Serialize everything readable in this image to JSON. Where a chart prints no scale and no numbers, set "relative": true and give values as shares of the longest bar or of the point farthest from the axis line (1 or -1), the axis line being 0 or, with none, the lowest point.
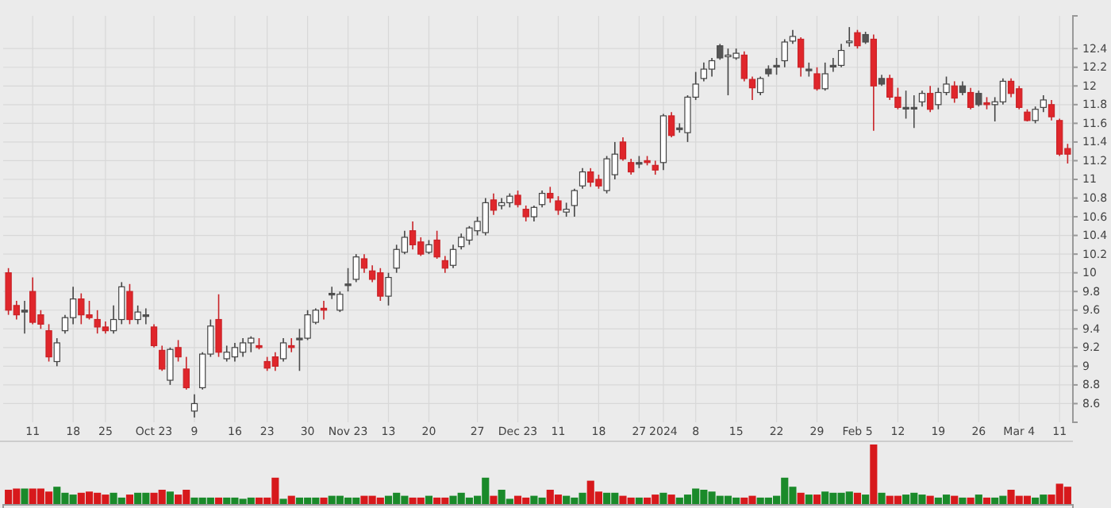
{
  "chart_data": [
    {
      "type": "candlestick",
      "grid": true,
      "categories": [
        null,
        null,
        null,
        "11",
        null,
        null,
        null,
        null,
        "18",
        null,
        null,
        null,
        "25",
        null,
        null,
        null,
        null,
        null,
        "Oct 23",
        null,
        null,
        null,
        null,
        "9",
        null,
        null,
        null,
        null,
        "16",
        null,
        null,
        null,
        "23",
        null,
        null,
        null,
        null,
        "30",
        null,
        null,
        null,
        null,
        "Nov 23",
        null,
        null,
        null,
        null,
        "13",
        null,
        null,
        null,
        null,
        "20",
        null,
        null,
        null,
        null,
        null,
        "27",
        null,
        null,
        null,
        null,
        "Dec 23",
        null,
        null,
        null,
        null,
        "11",
        null,
        null,
        null,
        null,
        "18",
        null,
        null,
        null,
        null,
        "27",
        null,
        null,
        "2024",
        null,
        null,
        null,
        "8",
        null,
        null,
        null,
        null,
        "15",
        null,
        null,
        null,
        null,
        "22",
        null,
        null,
        null,
        null,
        "29",
        null,
        null,
        null,
        null,
        "Feb 5",
        null,
        null,
        null,
        null,
        "12",
        null,
        null,
        null,
        null,
        "19",
        null,
        null,
        null,
        null,
        "26",
        null,
        null,
        null,
        null,
        "Mar 4",
        null,
        null,
        null,
        null,
        "11",
        null
      ],
      "ylim": [
        8.4,
        12.75
      ],
      "yticks": [
        8.6,
        8.8,
        9,
        9.2,
        9.4,
        9.6,
        9.8,
        10,
        10.2,
        10.4,
        10.6,
        10.8,
        11,
        11.2,
        11.4,
        11.6,
        11.8,
        12,
        12.2,
        12.4
      ],
      "ohlc": [
        [
          10.0,
          10.05,
          9.55,
          9.6
        ],
        [
          9.65,
          9.7,
          9.5,
          9.55
        ],
        [
          9.6,
          9.7,
          9.35,
          9.58
        ],
        [
          9.8,
          9.95,
          9.45,
          9.47
        ],
        [
          9.55,
          9.6,
          9.4,
          9.45
        ],
        [
          9.38,
          9.45,
          9.05,
          9.1
        ],
        [
          9.05,
          9.3,
          9.0,
          9.25
        ],
        [
          9.38,
          9.55,
          9.35,
          9.52
        ],
        [
          9.52,
          9.85,
          9.45,
          9.72
        ],
        [
          9.72,
          9.78,
          9.45,
          9.55
        ],
        [
          9.55,
          9.7,
          9.5,
          9.52
        ],
        [
          9.5,
          9.6,
          9.35,
          9.42
        ],
        [
          9.42,
          9.48,
          9.35,
          9.38
        ],
        [
          9.38,
          9.65,
          9.35,
          9.5
        ],
        [
          9.5,
          9.9,
          9.45,
          9.85
        ],
        [
          9.8,
          9.88,
          9.45,
          9.5
        ],
        [
          9.5,
          9.65,
          9.45,
          9.58
        ],
        [
          9.55,
          9.62,
          9.45,
          9.55
        ],
        [
          9.42,
          9.45,
          9.2,
          9.22
        ],
        [
          9.17,
          9.22,
          8.95,
          8.97
        ],
        [
          8.85,
          9.2,
          8.8,
          9.18
        ],
        [
          9.2,
          9.28,
          9.05,
          9.1
        ],
        [
          8.97,
          9.1,
          8.75,
          8.77
        ],
        [
          8.52,
          8.7,
          8.45,
          8.6
        ],
        [
          8.77,
          9.15,
          8.75,
          9.13
        ],
        [
          9.13,
          9.5,
          9.1,
          9.43
        ],
        [
          9.5,
          9.77,
          9.1,
          9.15
        ],
        [
          9.08,
          9.22,
          9.05,
          9.15
        ],
        [
          9.1,
          9.25,
          9.05,
          9.2
        ],
        [
          9.15,
          9.3,
          9.1,
          9.25
        ],
        [
          9.25,
          9.32,
          9.15,
          9.3
        ],
        [
          9.22,
          9.3,
          9.18,
          9.2
        ],
        [
          9.05,
          9.1,
          8.95,
          8.98
        ],
        [
          9.1,
          9.15,
          8.95,
          9.0
        ],
        [
          9.08,
          9.3,
          9.05,
          9.25
        ],
        [
          9.22,
          9.3,
          9.15,
          9.2
        ],
        [
          9.3,
          9.4,
          8.95,
          9.3
        ],
        [
          9.3,
          9.6,
          9.28,
          9.55
        ],
        [
          9.47,
          9.62,
          9.45,
          9.6
        ],
        [
          9.62,
          9.7,
          9.5,
          9.6
        ],
        [
          9.78,
          9.85,
          9.72,
          9.78
        ],
        [
          9.6,
          9.8,
          9.58,
          9.77
        ],
        [
          9.88,
          10.05,
          9.8,
          9.88
        ],
        [
          9.93,
          10.2,
          9.9,
          10.17
        ],
        [
          10.15,
          10.2,
          10.0,
          10.05
        ],
        [
          10.02,
          10.08,
          9.9,
          9.93
        ],
        [
          10.0,
          10.05,
          9.7,
          9.75
        ],
        [
          9.75,
          10.0,
          9.65,
          9.95
        ],
        [
          10.05,
          10.3,
          10.0,
          10.25
        ],
        [
          10.22,
          10.45,
          10.2,
          10.38
        ],
        [
          10.45,
          10.55,
          10.25,
          10.3
        ],
        [
          10.33,
          10.38,
          10.18,
          10.2
        ],
        [
          10.22,
          10.35,
          10.2,
          10.3
        ],
        [
          10.35,
          10.45,
          10.15,
          10.17
        ],
        [
          10.13,
          10.18,
          10.0,
          10.05
        ],
        [
          10.08,
          10.3,
          10.05,
          10.25
        ],
        [
          10.28,
          10.42,
          10.25,
          10.38
        ],
        [
          10.35,
          10.5,
          10.3,
          10.48
        ],
        [
          10.45,
          10.6,
          10.4,
          10.55
        ],
        [
          10.43,
          10.8,
          10.4,
          10.75
        ],
        [
          10.78,
          10.85,
          10.62,
          10.67
        ],
        [
          10.72,
          10.8,
          10.68,
          10.75
        ],
        [
          10.75,
          10.85,
          10.7,
          10.82
        ],
        [
          10.83,
          10.88,
          10.7,
          10.73
        ],
        [
          10.68,
          10.72,
          10.55,
          10.6
        ],
        [
          10.6,
          10.72,
          10.55,
          10.7
        ],
        [
          10.73,
          10.88,
          10.7,
          10.85
        ],
        [
          10.85,
          10.92,
          10.75,
          10.8
        ],
        [
          10.77,
          10.82,
          10.62,
          10.67
        ],
        [
          10.65,
          10.75,
          10.6,
          10.68
        ],
        [
          10.72,
          10.9,
          10.6,
          10.88
        ],
        [
          10.93,
          11.12,
          10.9,
          11.08
        ],
        [
          11.08,
          11.12,
          10.92,
          10.97
        ],
        [
          11.0,
          11.05,
          10.9,
          10.93
        ],
        [
          10.88,
          11.25,
          10.85,
          11.22
        ],
        [
          11.05,
          11.4,
          11.0,
          11.27
        ],
        [
          11.4,
          11.45,
          11.2,
          11.22
        ],
        [
          11.18,
          11.22,
          11.05,
          11.08
        ],
        [
          11.18,
          11.25,
          11.12,
          11.18
        ],
        [
          11.2,
          11.25,
          11.15,
          11.18
        ],
        [
          11.15,
          11.2,
          11.05,
          11.1
        ],
        [
          11.18,
          11.7,
          11.1,
          11.68
        ],
        [
          11.68,
          11.72,
          11.45,
          11.47
        ],
        [
          11.55,
          11.6,
          11.5,
          11.55
        ],
        [
          11.5,
          11.9,
          11.4,
          11.88
        ],
        [
          11.88,
          12.15,
          11.85,
          12.02
        ],
        [
          12.08,
          12.25,
          12.05,
          12.18
        ],
        [
          12.18,
          12.3,
          12.1,
          12.27
        ],
        [
          12.43,
          12.45,
          12.28,
          12.3
        ],
        [
          12.32,
          12.4,
          11.9,
          12.33
        ],
        [
          12.3,
          12.4,
          12.28,
          12.35
        ],
        [
          12.33,
          12.37,
          12.05,
          12.08
        ],
        [
          12.07,
          12.1,
          11.85,
          11.98
        ],
        [
          11.93,
          12.1,
          11.9,
          12.08
        ],
        [
          12.18,
          12.22,
          12.1,
          12.13
        ],
        [
          12.22,
          12.3,
          12.12,
          12.22
        ],
        [
          12.27,
          12.5,
          12.2,
          12.47
        ],
        [
          12.48,
          12.6,
          12.45,
          12.53
        ],
        [
          12.5,
          12.52,
          12.1,
          12.2
        ],
        [
          12.18,
          12.25,
          12.1,
          12.18
        ],
        [
          12.13,
          12.2,
          11.95,
          11.97
        ],
        [
          11.97,
          12.25,
          11.95,
          12.13
        ],
        [
          12.22,
          12.3,
          12.15,
          12.22
        ],
        [
          12.22,
          12.45,
          12.2,
          12.38
        ],
        [
          12.47,
          12.63,
          12.42,
          12.48
        ],
        [
          12.57,
          12.6,
          12.4,
          12.43
        ],
        [
          12.55,
          12.58,
          12.45,
          12.47
        ],
        [
          12.5,
          12.55,
          11.52,
          12.0
        ],
        [
          12.08,
          12.12,
          12.0,
          12.02
        ],
        [
          12.08,
          12.12,
          11.85,
          11.88
        ],
        [
          11.88,
          11.98,
          11.75,
          11.77
        ],
        [
          11.77,
          11.95,
          11.65,
          11.77
        ],
        [
          11.77,
          11.9,
          11.55,
          11.77
        ],
        [
          11.83,
          11.95,
          11.78,
          11.92
        ],
        [
          11.92,
          12.0,
          11.72,
          11.75
        ],
        [
          11.8,
          11.98,
          11.75,
          11.93
        ],
        [
          11.93,
          12.1,
          11.9,
          12.02
        ],
        [
          12.0,
          12.05,
          11.82,
          11.87
        ],
        [
          12.0,
          12.05,
          11.9,
          11.93
        ],
        [
          11.93,
          11.98,
          11.75,
          11.77
        ],
        [
          11.92,
          11.95,
          11.78,
          11.8
        ],
        [
          11.82,
          11.88,
          11.75,
          11.8
        ],
        [
          11.8,
          11.88,
          11.62,
          11.83
        ],
        [
          11.83,
          12.08,
          11.8,
          12.05
        ],
        [
          12.05,
          12.08,
          11.88,
          11.92
        ],
        [
          11.97,
          12.0,
          11.75,
          11.77
        ],
        [
          11.72,
          11.75,
          11.62,
          11.63
        ],
        [
          11.63,
          11.78,
          11.6,
          11.75
        ],
        [
          11.77,
          11.9,
          11.72,
          11.85
        ],
        [
          11.8,
          11.85,
          11.63,
          11.67
        ],
        [
          11.63,
          11.65,
          11.25,
          11.27
        ],
        [
          11.33,
          11.38,
          11.17,
          11.27
        ]
      ],
      "colors": [
        "#e0262b",
        "#e0262b",
        "#555555",
        "#e0262b",
        "#e0262b",
        "#e0262b",
        "#ffffff",
        "#ffffff",
        "#ffffff",
        "#e0262b",
        "#e0262b",
        "#e0262b",
        "#e0262b",
        "#ffffff",
        "#ffffff",
        "#e0262b",
        "#ffffff",
        "#555555",
        "#e0262b",
        "#e0262b",
        "#ffffff",
        "#e0262b",
        "#e0262b",
        "#ffffff",
        "#ffffff",
        "#ffffff",
        "#e0262b",
        "#ffffff",
        "#ffffff",
        "#ffffff",
        "#ffffff",
        "#e0262b",
        "#e0262b",
        "#e0262b",
        "#ffffff",
        "#e0262b",
        "#555555",
        "#ffffff",
        "#ffffff",
        "#e0262b",
        "#555555",
        "#ffffff",
        "#555555",
        "#ffffff",
        "#e0262b",
        "#e0262b",
        "#e0262b",
        "#ffffff",
        "#ffffff",
        "#ffffff",
        "#e0262b",
        "#e0262b",
        "#ffffff",
        "#e0262b",
        "#e0262b",
        "#ffffff",
        "#ffffff",
        "#ffffff",
        "#ffffff",
        "#ffffff",
        "#e0262b",
        "#ffffff",
        "#ffffff",
        "#e0262b",
        "#e0262b",
        "#ffffff",
        "#ffffff",
        "#e0262b",
        "#e0262b",
        "#ffffff",
        "#ffffff",
        "#ffffff",
        "#e0262b",
        "#e0262b",
        "#ffffff",
        "#ffffff",
        "#e0262b",
        "#e0262b",
        "#555555",
        "#e0262b",
        "#e0262b",
        "#ffffff",
        "#e0262b",
        "#555555",
        "#ffffff",
        "#ffffff",
        "#ffffff",
        "#ffffff",
        "#555555",
        "#ffffff",
        "#ffffff",
        "#e0262b",
        "#e0262b",
        "#ffffff",
        "#555555",
        "#555555",
        "#ffffff",
        "#ffffff",
        "#e0262b",
        "#555555",
        "#e0262b",
        "#ffffff",
        "#555555",
        "#ffffff",
        "#ffffff",
        "#e0262b",
        "#555555",
        "#e0262b",
        "#555555",
        "#e0262b",
        "#e0262b",
        "#555555",
        "#555555",
        "#ffffff",
        "#e0262b",
        "#ffffff",
        "#ffffff",
        "#e0262b",
        "#555555",
        "#e0262b",
        "#555555",
        "#e0262b",
        "#ffffff",
        "#ffffff",
        "#e0262b",
        "#e0262b",
        "#e0262b",
        "#ffffff",
        "#ffffff",
        "#e0262b",
        "#e0262b",
        "#e0262b"
      ]
    },
    {
      "type": "bar",
      "relative": true,
      "categories": [
        null,
        null,
        null,
        null,
        null,
        null,
        null,
        null,
        null,
        null,
        null,
        null,
        null,
        null,
        null,
        null,
        null,
        null,
        null,
        null,
        null,
        null,
        null,
        null,
        null,
        null,
        null,
        null,
        null,
        null,
        null,
        null,
        null,
        null,
        null,
        null,
        null,
        null,
        null,
        null,
        null,
        null,
        null,
        null,
        null,
        null,
        null,
        null,
        null,
        null,
        null,
        null,
        null,
        null,
        null,
        null,
        null,
        null,
        null,
        null,
        null,
        null,
        null,
        null,
        null,
        null,
        null,
        null,
        null,
        null,
        null,
        null,
        null,
        null,
        null,
        null,
        null,
        null,
        null,
        null,
        null,
        null,
        null,
        null,
        null,
        null,
        null,
        null,
        null,
        null,
        null,
        null,
        null,
        null,
        null,
        null,
        null,
        null,
        null,
        null,
        null,
        null,
        null,
        null,
        null,
        null,
        null,
        null,
        null,
        null,
        null,
        null,
        null,
        null,
        null,
        null,
        null,
        null,
        null,
        null,
        null,
        null,
        null,
        null,
        null,
        null,
        null,
        null,
        null,
        null,
        null,
        null
      ],
      "values": [
        0.25,
        0.27,
        0.27,
        0.27,
        0.27,
        0.22,
        0.3,
        0.2,
        0.17,
        0.2,
        0.22,
        0.2,
        0.17,
        0.2,
        0.12,
        0.17,
        0.2,
        0.2,
        0.2,
        0.25,
        0.22,
        0.17,
        0.25,
        0.12,
        0.12,
        0.12,
        0.12,
        0.12,
        0.12,
        0.1,
        0.12,
        0.12,
        0.12,
        0.45,
        0.1,
        0.15,
        0.12,
        0.12,
        0.12,
        0.12,
        0.15,
        0.15,
        0.12,
        0.12,
        0.15,
        0.15,
        0.12,
        0.15,
        0.2,
        0.15,
        0.12,
        0.12,
        0.15,
        0.12,
        0.12,
        0.15,
        0.2,
        0.12,
        0.15,
        0.45,
        0.15,
        0.25,
        0.1,
        0.15,
        0.12,
        0.15,
        0.12,
        0.25,
        0.17,
        0.15,
        0.12,
        0.2,
        0.4,
        0.22,
        0.2,
        0.2,
        0.15,
        0.12,
        0.12,
        0.12,
        0.17,
        0.2,
        0.17,
        0.12,
        0.17,
        0.27,
        0.25,
        0.22,
        0.15,
        0.15,
        0.12,
        0.12,
        0.15,
        0.12,
        0.12,
        0.15,
        0.45,
        0.3,
        0.2,
        0.17,
        0.17,
        0.22,
        0.2,
        0.2,
        0.22,
        0.2,
        0.17,
        1.0,
        0.2,
        0.15,
        0.15,
        0.17,
        0.2,
        0.17,
        0.15,
        0.12,
        0.17,
        0.15,
        0.12,
        0.12,
        0.17,
        0.12,
        0.12,
        0.15,
        0.25,
        0.15,
        0.15,
        0.12,
        0.17,
        0.17,
        0.35,
        0.3
      ],
      "colors": [
        "#d7191c",
        "#d7191c",
        "#1a8a2a",
        "#d7191c",
        "#d7191c",
        "#d7191c",
        "#1a8a2a",
        "#1a8a2a",
        "#1a8a2a",
        "#d7191c",
        "#d7191c",
        "#d7191c",
        "#d7191c",
        "#1a8a2a",
        "#1a8a2a",
        "#d7191c",
        "#1a8a2a",
        "#1a8a2a",
        "#d7191c",
        "#d7191c",
        "#1a8a2a",
        "#d7191c",
        "#d7191c",
        "#1a8a2a",
        "#1a8a2a",
        "#1a8a2a",
        "#d7191c",
        "#1a8a2a",
        "#1a8a2a",
        "#1a8a2a",
        "#1a8a2a",
        "#d7191c",
        "#d7191c",
        "#d7191c",
        "#1a8a2a",
        "#d7191c",
        "#1a8a2a",
        "#1a8a2a",
        "#1a8a2a",
        "#d7191c",
        "#1a8a2a",
        "#1a8a2a",
        "#1a8a2a",
        "#1a8a2a",
        "#d7191c",
        "#d7191c",
        "#d7191c",
        "#1a8a2a",
        "#1a8a2a",
        "#1a8a2a",
        "#d7191c",
        "#d7191c",
        "#1a8a2a",
        "#d7191c",
        "#d7191c",
        "#1a8a2a",
        "#1a8a2a",
        "#1a8a2a",
        "#1a8a2a",
        "#1a8a2a",
        "#d7191c",
        "#1a8a2a",
        "#1a8a2a",
        "#d7191c",
        "#d7191c",
        "#1a8a2a",
        "#1a8a2a",
        "#d7191c",
        "#d7191c",
        "#1a8a2a",
        "#1a8a2a",
        "#1a8a2a",
        "#d7191c",
        "#d7191c",
        "#1a8a2a",
        "#1a8a2a",
        "#d7191c",
        "#d7191c",
        "#1a8a2a",
        "#d7191c",
        "#d7191c",
        "#1a8a2a",
        "#d7191c",
        "#1a8a2a",
        "#1a8a2a",
        "#1a8a2a",
        "#1a8a2a",
        "#1a8a2a",
        "#1a8a2a",
        "#1a8a2a",
        "#1a8a2a",
        "#d7191c",
        "#d7191c",
        "#1a8a2a",
        "#1a8a2a",
        "#1a8a2a",
        "#1a8a2a",
        "#1a8a2a",
        "#d7191c",
        "#1a8a2a",
        "#d7191c",
        "#1a8a2a",
        "#1a8a2a",
        "#1a8a2a",
        "#1a8a2a",
        "#d7191c",
        "#1a8a2a",
        "#d7191c",
        "#1a8a2a",
        "#d7191c",
        "#d7191c",
        "#1a8a2a",
        "#1a8a2a",
        "#1a8a2a",
        "#d7191c",
        "#1a8a2a",
        "#1a8a2a",
        "#d7191c",
        "#1a8a2a",
        "#d7191c",
        "#1a8a2a",
        "#d7191c",
        "#1a8a2a",
        "#1a8a2a",
        "#d7191c",
        "#d7191c",
        "#d7191c",
        "#1a8a2a",
        "#1a8a2a",
        "#d7191c",
        "#d7191c",
        "#d7191c"
      ]
    }
  ]
}
